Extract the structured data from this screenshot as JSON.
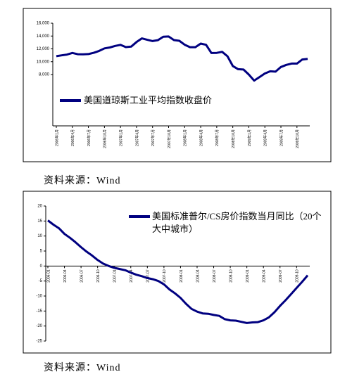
{
  "chart_data": [
    {
      "type": "line",
      "categories": [
        "2006年1月",
        null,
        null,
        "2006年4月",
        null,
        null,
        "2006年7月",
        null,
        null,
        "2006年10月",
        null,
        null,
        "2007年1月",
        null,
        null,
        "2007年4月",
        null,
        null,
        "2007年7月",
        null,
        null,
        "2007年10月",
        null,
        null,
        "2008年1月",
        null,
        null,
        "2008年4月",
        null,
        null,
        "2008年7月",
        null,
        null,
        "2008年10月",
        null,
        null,
        "2009年1月",
        null,
        null,
        "2009年4月",
        null,
        null,
        "2009年7月",
        null,
        null,
        "2009年10月",
        null,
        null
      ],
      "series": [
        {
          "name": "美国道琼斯工业平均指数收盘价",
          "color": "#000080",
          "values": [
            10865,
            10993,
            11109,
            11367,
            11168,
            11150,
            11186,
            11381,
            11679,
            12081,
            12221,
            12463,
            12622,
            12269,
            12354,
            13063,
            13628,
            13409,
            13212,
            13358,
            13896,
            13930,
            13372,
            13265,
            12650,
            12266,
            12263,
            12820,
            12638,
            11350,
            11378,
            11544,
            10851,
            9325,
            8829,
            8776,
            8001,
            7063,
            7609,
            8168,
            8500,
            8447,
            9172,
            9496,
            9712,
            9713,
            10345,
            10428
          ]
        }
      ],
      "ylim": [
        0,
        16000
      ],
      "yticks": [
        {
          "value": 8000,
          "label": "8,000"
        },
        {
          "value": 10000,
          "label": "10,000"
        },
        {
          "value": 12000,
          "label": "12,000"
        },
        {
          "value": 14000,
          "label": "14,000"
        },
        {
          "value": 16000,
          "label": "16,000"
        }
      ],
      "source": "资料来源：Wind"
    },
    {
      "type": "line",
      "categories": [
        "2006-01",
        null,
        null,
        "2006-04",
        null,
        null,
        "2006-07",
        null,
        null,
        "2006-10",
        null,
        null,
        "2007-01",
        null,
        null,
        "2007-04",
        null,
        null,
        "2007-07",
        null,
        null,
        "2007-10",
        null,
        null,
        "2008-01",
        null,
        null,
        "2008-04",
        null,
        null,
        "2008-07",
        null,
        null,
        "2008-10",
        null,
        null,
        "2009-01",
        null,
        null,
        "2009-04",
        null,
        null,
        "2009-07",
        null,
        null,
        "2009-10",
        null,
        null
      ],
      "series": [
        {
          "name": "美国标准普尔/CS房价指数当月同比（20个大中城市）",
          "color": "#000080",
          "values": [
            15.2,
            13.8,
            12.6,
            10.7,
            9.4,
            7.9,
            6.3,
            4.8,
            3.5,
            2.0,
            0.8,
            0.0,
            -0.6,
            -1.0,
            -1.4,
            -2.2,
            -2.9,
            -3.4,
            -4.0,
            -4.4,
            -5.0,
            -6.1,
            -7.8,
            -9.1,
            -10.6,
            -12.6,
            -14.3,
            -15.2,
            -15.8,
            -15.9,
            -16.3,
            -16.6,
            -17.7,
            -18.1,
            -18.2,
            -18.6,
            -19.0,
            -18.8,
            -18.7,
            -18.1,
            -17.1,
            -15.4,
            -13.3,
            -11.4,
            -9.4,
            -7.3,
            -5.3,
            -3.1
          ]
        }
      ],
      "ylim": [
        -25,
        20
      ],
      "yticks": [
        -25,
        -20,
        -15,
        -10,
        -5,
        0,
        5,
        10,
        15,
        20
      ],
      "source": "资料来源：Wind"
    }
  ]
}
